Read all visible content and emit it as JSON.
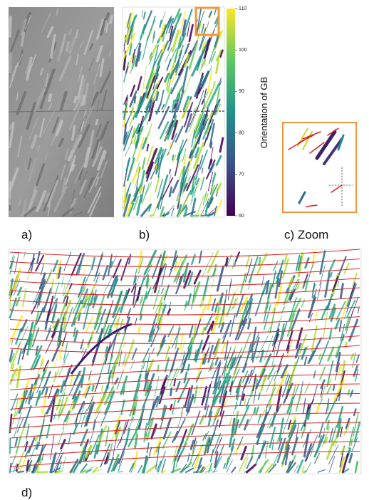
{
  "panels": {
    "a": "a)",
    "b": "b)",
    "c": "c) Zoom",
    "d": "d)"
  },
  "colorbar": {
    "label": "Orientation of GB",
    "lim": [
      60,
      110
    ],
    "ticks": [
      60,
      70,
      80,
      90,
      100,
      110
    ]
  }
}
